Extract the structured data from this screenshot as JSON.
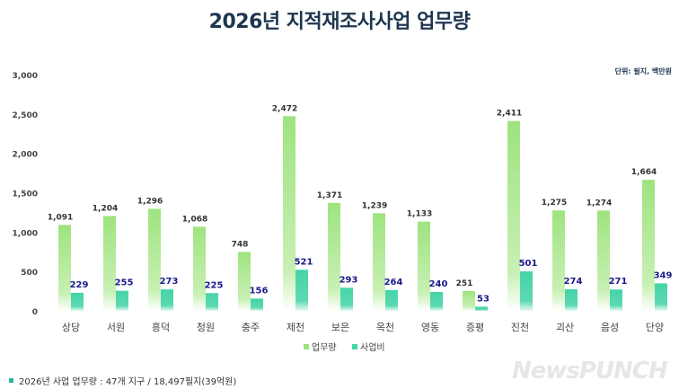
{
  "chart_data": {
    "type": "bar",
    "title": "2026년 지적재조사사업 업무량",
    "unit_label": "단위: 필지, 백만원",
    "categories": [
      "상당",
      "서원",
      "흥덕",
      "청원",
      "충주",
      "제천",
      "보은",
      "옥천",
      "영동",
      "증평",
      "진천",
      "괴산",
      "음성",
      "단양"
    ],
    "series": [
      {
        "name": "업무량",
        "color": "#9ee37f",
        "label_color": "#333333",
        "values": [
          1091,
          1204,
          1296,
          1068,
          748,
          2472,
          1371,
          1239,
          1133,
          251,
          2411,
          1275,
          1274,
          1664
        ]
      },
      {
        "name": "사업비",
        "color": "#45d3a8",
        "label_color": "#1a1a8c",
        "values": [
          229,
          255,
          273,
          225,
          156,
          521,
          293,
          264,
          240,
          53,
          501,
          274,
          271,
          349
        ]
      }
    ],
    "yticks": [
      "0",
      "500",
      "1,000",
      "1,500",
      "2,000",
      "2,500",
      "3,000"
    ],
    "ylim": [
      0,
      3000
    ],
    "grid": false,
    "legend": "bottom-center"
  },
  "footnote": "2026년 사업 업무량 : 47개 지구 / 18,497필지(39억원)",
  "watermark": "NewsPUNCH"
}
